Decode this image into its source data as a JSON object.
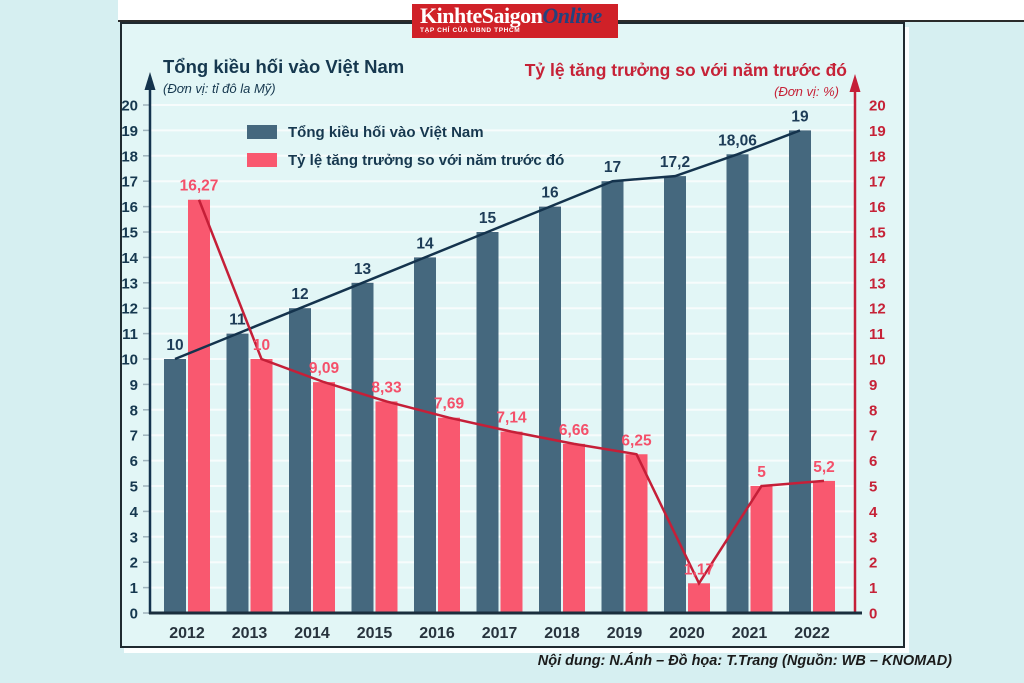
{
  "masthead": {
    "title_main": "KinhteSaigon",
    "title_accent": "Online",
    "subtitle": "TẠP CHÍ CỦA UBND TPHCM",
    "background_color": "#d02128",
    "accent_color": "#24427d"
  },
  "footer": {
    "credit": "Nội dung: N.Ánh – Đồ họa: T.Trang (Nguồn: WB – KNOMAD)"
  },
  "chart_data": {
    "type": "bar",
    "categories": [
      "2012",
      "2013",
      "2014",
      "2015",
      "2016",
      "2017",
      "2018",
      "2019",
      "2020",
      "2021",
      "2022"
    ],
    "series": [
      {
        "name": "Tổng kiều hối vào Việt Nam",
        "axis": "left",
        "values": [
          10,
          11,
          12,
          13,
          14,
          15,
          16,
          17,
          17.2,
          18.06,
          19
        ],
        "labels": [
          "10",
          "11",
          "12",
          "13",
          "14",
          "15",
          "16",
          "17",
          "17,2",
          "18,06",
          "19"
        ],
        "bar_color": "#45687e",
        "line_color": "#14334d",
        "label_color": "#1d3c57"
      },
      {
        "name": "Tỷ lệ tăng trưởng so với năm trước đó",
        "axis": "right",
        "values": [
          16.27,
          10,
          9.09,
          8.33,
          7.69,
          7.14,
          6.66,
          6.25,
          1.17,
          5,
          5.2
        ],
        "labels": [
          "16,27",
          "10",
          "9,09",
          "8,33",
          "7,69",
          "7,14",
          "6,66",
          "6,25",
          "1,17",
          "5",
          "5,2"
        ],
        "bar_color": "#f9586f",
        "line_color": "#c51f38",
        "label_color": "#f4506a"
      }
    ],
    "left_axis": {
      "title": "Tổng kiều hối vào Việt Nam",
      "subtitle": "(Đơn vị: tỉ đô la Mỹ)",
      "min": 0,
      "max": 20,
      "step": 1,
      "color": "#16384f"
    },
    "right_axis": {
      "title": "Tỷ lệ tăng trưởng so với năm trước đó",
      "subtitle": "(Đơn vị: %)",
      "min": 0,
      "max": 20,
      "step": 1,
      "color": "#c62237"
    },
    "year_label_color": "#27333d",
    "grid": true,
    "legend_position": "top-left-inside"
  }
}
